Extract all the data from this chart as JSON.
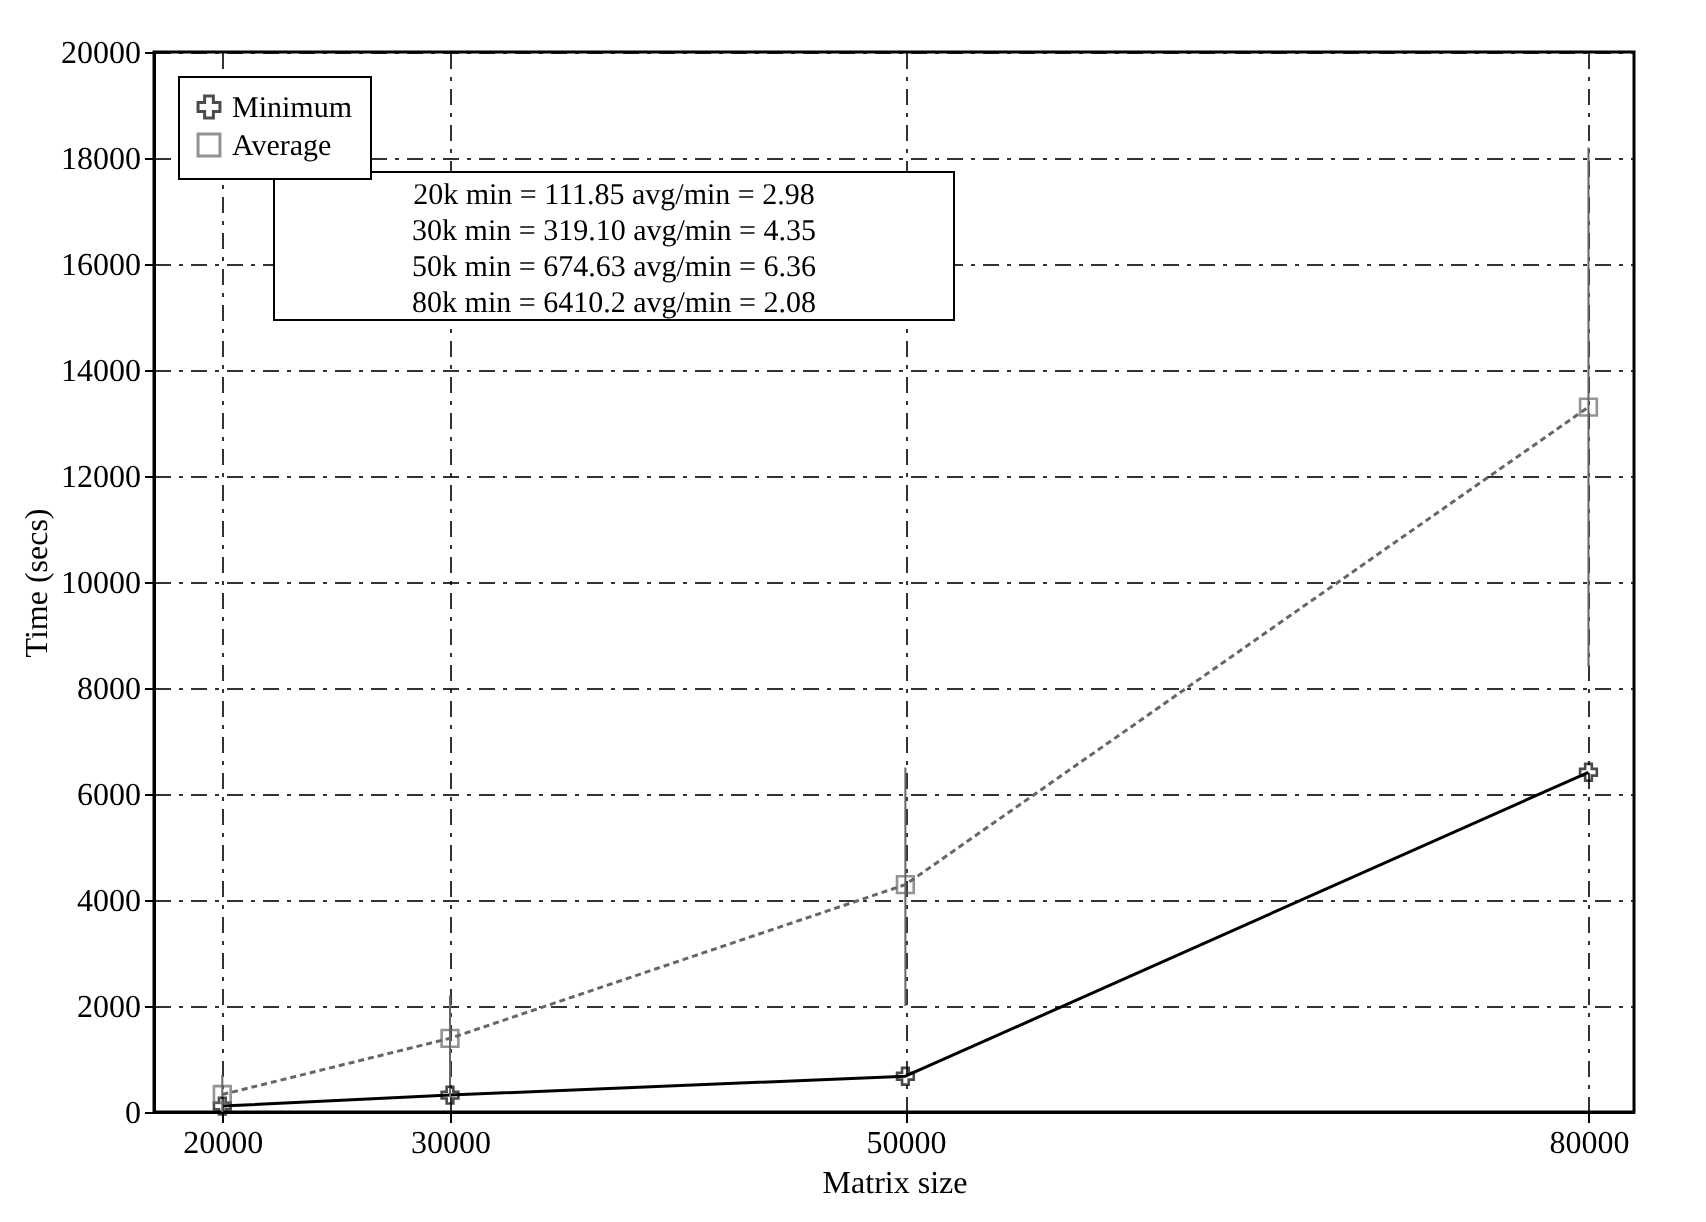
{
  "chart_data": {
    "type": "line",
    "xlabel": "Matrix size",
    "ylabel": "Time (secs)",
    "x": [
      20000,
      30000,
      50000,
      80000
    ],
    "xlim": [
      17000,
      82000
    ],
    "xticks": [
      20000,
      30000,
      50000,
      80000
    ],
    "ylim": [
      0,
      20000
    ],
    "yticks": [
      0,
      2000,
      4000,
      6000,
      8000,
      10000,
      12000,
      14000,
      16000,
      18000,
      20000
    ],
    "grid": true,
    "legend": "top left",
    "annotations": [
      "20k min = 111.85 avg/min = 2.98",
      "30k min = 319.10 avg/min = 4.35",
      "50k min = 674.63 avg/min = 6.36",
      "80k min = 6410.2 avg/min = 2.08"
    ],
    "series": [
      {
        "name": "Minimum",
        "color": "#000000",
        "marker": "cross",
        "line_style": "solid",
        "values": [
          111.85,
          319.1,
          674.63,
          6410.2
        ]
      },
      {
        "name": "Average",
        "color": "#666666",
        "marker": "square",
        "line_style": "dashed",
        "values": [
          330,
          1390,
          4290,
          13300
        ],
        "errors": [
          [
            0,
            700
          ],
          [
            300,
            2200
          ],
          [
            2000,
            6500
          ],
          [
            8400,
            18200
          ]
        ]
      }
    ]
  }
}
